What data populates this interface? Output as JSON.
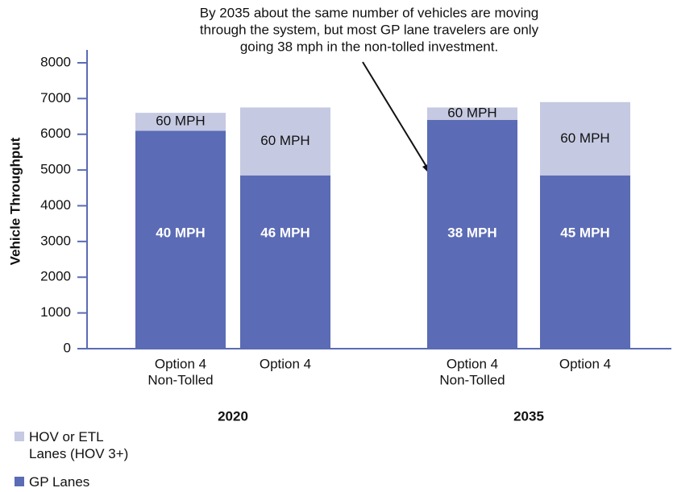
{
  "chart_data": {
    "type": "stacked_bar",
    "annotation": [
      "By 2035 about the same number of vehicles are moving",
      "through the system, but most GP lane travelers are only",
      "going 38 mph in the non-tolled investment."
    ],
    "y_label": "Vehicle Throughput",
    "groups": [
      "2020",
      "2035"
    ],
    "categories": [
      [
        "Option 4",
        "Non-Tolled"
      ],
      [
        "Option 4"
      ],
      [
        "Option 4",
        "Non-Tolled"
      ],
      [
        "Option 4"
      ]
    ],
    "series": [
      {
        "name": "GP Lanes",
        "color": "#5b6bb5",
        "values": [
          6100,
          4850,
          6400,
          4850
        ],
        "labels": [
          "40 MPH",
          "46 MPH",
          "38 MPH",
          "45 MPH"
        ]
      },
      {
        "name": "HOV or ETL Lanes (HOV 3+)",
        "color": "#c5c9e2",
        "values": [
          500,
          1900,
          350,
          2050
        ],
        "labels": [
          "60 MPH",
          "60 MPH",
          "60 MPH",
          "60 MPH"
        ]
      }
    ],
    "ylim": [
      0,
      8000
    ],
    "yticks": [
      0,
      1000,
      2000,
      3000,
      4000,
      5000,
      6000,
      7000,
      8000
    ],
    "grid": false
  }
}
